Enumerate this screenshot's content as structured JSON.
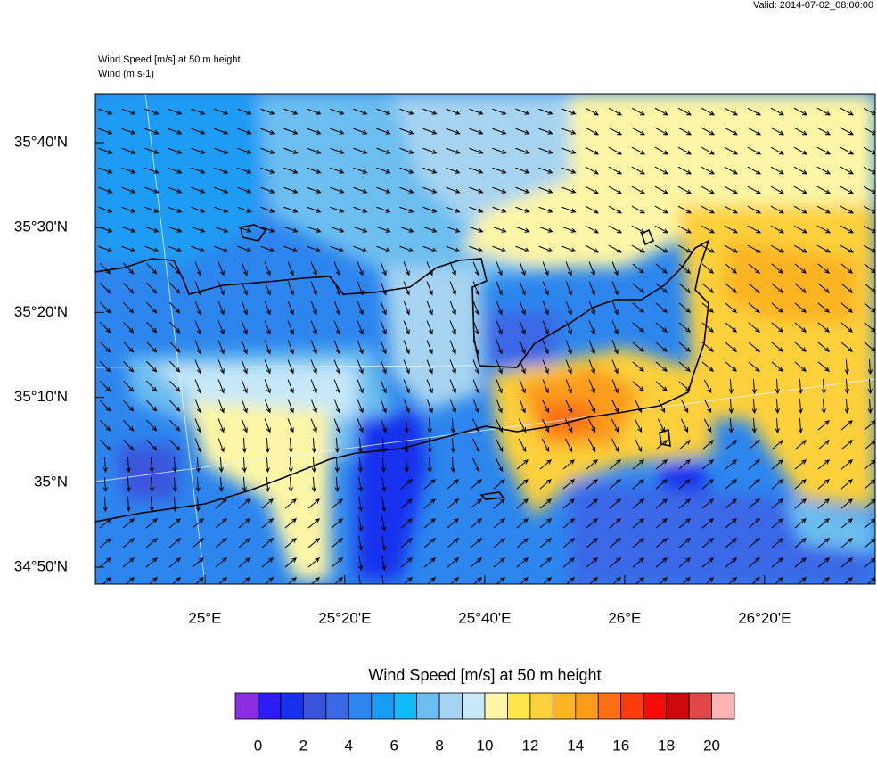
{
  "valid_time": "Valid: 2014-07-02_08:00:00",
  "map": {
    "title": "Wind Speed [m/s] at 50 m height",
    "subtitle": "Wind   (m s-1)",
    "xlim": [
      24.739,
      26.597
    ],
    "ylim": [
      34.8,
      35.763
    ],
    "xticks": [
      {
        "value": 25,
        "label": "25°E"
      },
      {
        "value": 25.3333,
        "label": "25°20'E"
      },
      {
        "value": 25.6667,
        "label": "25°40'E"
      },
      {
        "value": 26,
        "label": "26°E"
      },
      {
        "value": 26.3333,
        "label": "26°20'E"
      }
    ],
    "yticks": [
      {
        "value": 35.6667,
        "label": "35°40'N"
      },
      {
        "value": 35.5,
        "label": "35°30'N"
      },
      {
        "value": 35.3333,
        "label": "35°20'N"
      },
      {
        "value": 35.1667,
        "label": "35°10'N"
      },
      {
        "value": 35,
        "label": "35°N"
      },
      {
        "value": 34.8333,
        "label": "34°50'N"
      }
    ]
  },
  "colorbar": {
    "title": "Wind Speed [m/s] at 50 m height",
    "ticks": [
      0,
      2,
      4,
      6,
      8,
      10,
      12,
      14,
      16,
      18,
      20
    ],
    "colors": [
      "#8b2be2",
      "#2b1bf5",
      "#1730ee",
      "#3a54dd",
      "#3a68e6",
      "#2c86ee",
      "#1a9cf4",
      "#11baf8",
      "#6cbef0",
      "#a6d4f0",
      "#c6e8f8",
      "#fdf6a6",
      "#fde64a",
      "#fcd03b",
      "#fcb423",
      "#fc9c1a",
      "#fc7014",
      "#fc3c0e",
      "#f40c0a",
      "#cc0a0a",
      "#e04848",
      "#fcb4b4"
    ]
  }
}
